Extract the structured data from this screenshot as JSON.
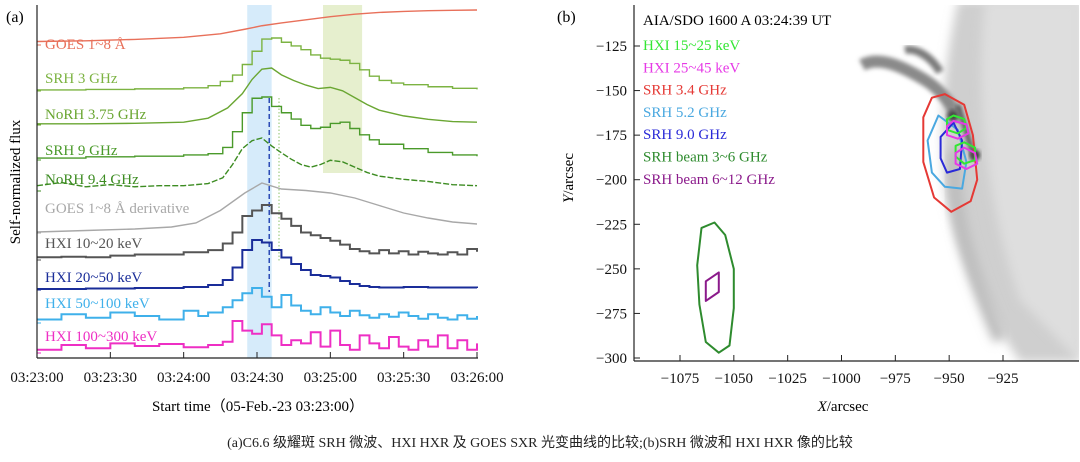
{
  "figure_caption": "(a)C6.6 级耀斑 SRH 微波、HXI HXR 及 GOES SXR 光变曲线的比较;(b)SRH 微波和 HXI HXR 像的比较",
  "chart_data": [
    {
      "panel_label": "(a)",
      "type": "line",
      "title": "",
      "xlabel": "Start time（05-Feb.-23 03:23:00）",
      "ylabel": "Self-normalized flux",
      "x_unit": "seconds since 03:23:00",
      "xlim": [
        0,
        180
      ],
      "x_ticks": [
        0,
        30,
        60,
        90,
        120,
        150,
        180
      ],
      "x_tick_labels": [
        "03:23:00",
        "03:23:30",
        "03:24:00",
        "03:24:30",
        "03:25:00",
        "03:25:30",
        "03:26:00"
      ],
      "grid": false,
      "legend": "inline labels left of each curve",
      "shaded_intervals": [
        {
          "name": "impulsive-phase",
          "x0": 86,
          "x1": 96,
          "color": "#d6ebfa"
        },
        {
          "name": "second-peak",
          "x0": 117,
          "x1": 133,
          "color": "#e6efce"
        }
      ],
      "vertical_markers": [
        {
          "name": "hxr-peak",
          "x": 95,
          "style": "dashed",
          "color": "#1f3fb0"
        },
        {
          "name": "microwave-peak",
          "x": 99,
          "style": "dotted",
          "color": "#8cc26a"
        }
      ],
      "series": [
        {
          "name": "GOES 1~8 Å",
          "color": "#e8705a",
          "step": false,
          "x": [
            0,
            20,
            40,
            60,
            75,
            85,
            92,
            100,
            110,
            120,
            130,
            140,
            150,
            160,
            170,
            180
          ],
          "y": [
            0.1,
            0.12,
            0.16,
            0.22,
            0.32,
            0.45,
            0.55,
            0.63,
            0.72,
            0.81,
            0.88,
            0.93,
            0.96,
            0.98,
            0.99,
            1.0
          ]
        },
        {
          "name": "SRH 3 GHz",
          "color": "#7cb342",
          "step": true,
          "x": [
            0,
            20,
            40,
            60,
            70,
            75,
            80,
            84,
            88,
            92,
            96,
            100,
            104,
            108,
            112,
            116,
            120,
            124,
            128,
            132,
            136,
            140,
            145,
            150,
            160,
            170,
            180
          ],
          "y": [
            0.02,
            0.03,
            0.04,
            0.06,
            0.1,
            0.18,
            0.3,
            0.5,
            0.75,
            0.98,
            1.0,
            0.92,
            0.85,
            0.78,
            0.68,
            0.62,
            0.6,
            0.58,
            0.52,
            0.4,
            0.28,
            0.2,
            0.15,
            0.12,
            0.08,
            0.05,
            0.03
          ]
        },
        {
          "name": "NoRH 3.75 GHz",
          "color": "#6aa632",
          "step": false,
          "x": [
            0,
            20,
            40,
            60,
            70,
            78,
            84,
            88,
            92,
            96,
            100,
            105,
            110,
            115,
            120,
            125,
            130,
            135,
            140,
            150,
            160,
            170,
            180
          ],
          "y": [
            0.02,
            0.02,
            0.03,
            0.05,
            0.12,
            0.3,
            0.55,
            0.8,
            0.98,
            1.0,
            0.88,
            0.78,
            0.7,
            0.64,
            0.66,
            0.6,
            0.48,
            0.36,
            0.26,
            0.16,
            0.1,
            0.06,
            0.05
          ]
        },
        {
          "name": "SRH 9 GHz",
          "color": "#4a9a2a",
          "step": true,
          "x": [
            0,
            20,
            40,
            60,
            70,
            76,
            80,
            84,
            88,
            92,
            96,
            100,
            104,
            108,
            112,
            116,
            120,
            124,
            128,
            132,
            136,
            140,
            150,
            160,
            170,
            180
          ],
          "y": [
            0.03,
            0.05,
            0.06,
            0.08,
            0.1,
            0.2,
            0.45,
            0.75,
            0.98,
            1.0,
            0.85,
            0.75,
            0.65,
            0.55,
            0.5,
            0.52,
            0.58,
            0.6,
            0.5,
            0.4,
            0.32,
            0.25,
            0.18,
            0.12,
            0.08,
            0.06
          ]
        },
        {
          "name": "NoRH 9.4 GHz",
          "color": "#3d8c22",
          "step": false,
          "dashed": true,
          "x": [
            0,
            10,
            20,
            30,
            40,
            50,
            60,
            70,
            76,
            80,
            84,
            88,
            92,
            96,
            100,
            104,
            108,
            112,
            116,
            120,
            125,
            130,
            135,
            140,
            150,
            160,
            170,
            180
          ],
          "y": [
            0.1,
            0.16,
            0.08,
            0.12,
            0.08,
            0.1,
            0.1,
            0.14,
            0.25,
            0.5,
            0.8,
            0.95,
            1.0,
            0.85,
            0.72,
            0.6,
            0.5,
            0.45,
            0.5,
            0.58,
            0.55,
            0.45,
            0.35,
            0.28,
            0.22,
            0.18,
            0.12,
            0.1
          ]
        },
        {
          "name": "GOES 1~8 Å derivative",
          "color": "#a8a8a8",
          "step": false,
          "x": [
            0,
            20,
            40,
            55,
            65,
            75,
            85,
            92,
            100,
            110,
            120,
            130,
            140,
            150,
            160,
            170,
            180
          ],
          "y": [
            0.02,
            0.05,
            0.08,
            0.12,
            0.2,
            0.45,
            0.8,
            1.0,
            0.88,
            0.85,
            0.8,
            0.7,
            0.55,
            0.4,
            0.3,
            0.22,
            0.18
          ]
        },
        {
          "name": "HXI 10~20 keV",
          "color": "#555555",
          "step": true,
          "x": [
            0,
            10,
            20,
            30,
            40,
            50,
            60,
            70,
            76,
            80,
            84,
            88,
            92,
            96,
            100,
            104,
            108,
            112,
            116,
            120,
            124,
            128,
            132,
            136,
            140,
            144,
            148,
            152,
            156,
            160,
            164,
            168,
            172,
            176,
            180
          ],
          "y": [
            0.05,
            0.06,
            0.05,
            0.08,
            0.1,
            0.1,
            0.14,
            0.18,
            0.3,
            0.5,
            0.8,
            0.9,
            1.0,
            0.85,
            0.75,
            0.62,
            0.5,
            0.45,
            0.4,
            0.35,
            0.28,
            0.2,
            0.16,
            0.12,
            0.18,
            0.12,
            0.16,
            0.1,
            0.15,
            0.12,
            0.1,
            0.14,
            0.1,
            0.2,
            0.15
          ]
        },
        {
          "name": "HXI 20~50 keV",
          "color": "#1a2d99",
          "step": true,
          "x": [
            0,
            20,
            40,
            60,
            70,
            76,
            80,
            84,
            88,
            92,
            96,
            100,
            104,
            108,
            112,
            116,
            120,
            124,
            128,
            132,
            136,
            140,
            150,
            160,
            170,
            180
          ],
          "y": [
            0.02,
            0.03,
            0.04,
            0.06,
            0.1,
            0.2,
            0.45,
            0.8,
            1.0,
            0.95,
            0.8,
            0.65,
            0.52,
            0.4,
            0.3,
            0.28,
            0.25,
            0.18,
            0.12,
            0.08,
            0.06,
            0.05,
            0.06,
            0.05,
            0.05,
            0.04
          ]
        },
        {
          "name": "HXI 50~100 keV",
          "color": "#3fb0ea",
          "step": true,
          "x": [
            0,
            10,
            20,
            30,
            40,
            50,
            60,
            66,
            70,
            76,
            80,
            84,
            88,
            92,
            96,
            100,
            104,
            108,
            112,
            116,
            120,
            124,
            128,
            132,
            136,
            140,
            144,
            148,
            152,
            156,
            160,
            164,
            168,
            172,
            176,
            180
          ],
          "y": [
            0.1,
            0.25,
            0.15,
            0.3,
            0.2,
            0.1,
            0.35,
            0.2,
            0.3,
            0.45,
            0.65,
            0.85,
            1.0,
            0.75,
            0.45,
            0.8,
            0.5,
            0.35,
            0.25,
            0.45,
            0.3,
            0.2,
            0.35,
            0.22,
            0.15,
            0.25,
            0.18,
            0.3,
            0.2,
            0.12,
            0.25,
            0.15,
            0.1,
            0.22,
            0.12,
            0.2
          ]
        },
        {
          "name": "HXI 100~300 keV",
          "color": "#ee2fc4",
          "step": true,
          "x": [
            0,
            10,
            20,
            30,
            40,
            50,
            60,
            70,
            76,
            80,
            84,
            88,
            92,
            96,
            100,
            104,
            108,
            112,
            116,
            120,
            124,
            128,
            132,
            136,
            140,
            144,
            148,
            152,
            156,
            160,
            164,
            168,
            172,
            176,
            180
          ],
          "y": [
            0.1,
            0.25,
            0.15,
            0.3,
            0.22,
            0.28,
            0.18,
            0.25,
            0.35,
            1.0,
            0.7,
            0.6,
            0.9,
            0.55,
            0.25,
            0.4,
            0.3,
            0.65,
            0.2,
            0.7,
            0.25,
            0.1,
            0.55,
            0.3,
            0.15,
            0.5,
            0.2,
            0.1,
            0.4,
            0.2,
            0.55,
            0.15,
            0.4,
            0.1,
            0.3
          ]
        }
      ]
    },
    {
      "panel_label": "(b)",
      "type": "scatter",
      "title": "AIA/SDO 1600 A 03:24:39 UT",
      "xlabel": "X/arcsec",
      "ylabel": "Y/arcsec",
      "xlim": [
        -1097,
        -891
      ],
      "ylim": [
        -300,
        -102
      ],
      "x_ticks": [
        -1075,
        -1050,
        -1025,
        -1000,
        -975,
        -950,
        -925
      ],
      "x_tick_labels": [
        "−1075",
        "−1050",
        "−1025",
        "−1000",
        "−975",
        "−950",
        "−925"
      ],
      "y_ticks": [
        -125,
        -150,
        -175,
        -200,
        -225,
        -250,
        -275,
        -300
      ],
      "y_tick_labels": [
        "−125",
        "−150",
        "−175",
        "−200",
        "−225",
        "−250",
        "−275",
        "−300"
      ],
      "grid": false,
      "legend": "top-left",
      "background": "grayscale AIA 1600 Å image, solar limb on right",
      "legend_entries": [
        {
          "label": "HXI 15~25 keV",
          "color": "#33e633"
        },
        {
          "label": "HXI 25~45 keV",
          "color": "#e63ae6"
        },
        {
          "label": "SRH 3.4 GHz",
          "color": "#e53935"
        },
        {
          "label": "SRH 5.2 GHz",
          "color": "#4aa8e0"
        },
        {
          "label": "SRH 9.0 GHz",
          "color": "#2a2ad8"
        },
        {
          "label": "SRH beam 3~6 GHz",
          "color": "#2e8b2e"
        },
        {
          "label": "SRH beam 6~12 GHz",
          "color": "#8b1a8b"
        }
      ],
      "contours": [
        {
          "name": "SRH 3.4 GHz",
          "color": "#e53935",
          "points": [
            [
              -952,
              -152
            ],
            [
              -943,
              -158
            ],
            [
              -939,
              -175
            ],
            [
              -937,
              -200
            ],
            [
              -940,
              -212
            ],
            [
              -949,
              -218
            ],
            [
              -957,
              -210
            ],
            [
              -962,
              -190
            ],
            [
              -962,
              -165
            ],
            [
              -958,
              -154
            ]
          ]
        },
        {
          "name": "SRH 5.2 GHz",
          "color": "#4aa8e0",
          "points": [
            [
              -955,
              -164
            ],
            [
              -946,
              -172
            ],
            [
              -942,
              -190
            ],
            [
              -944,
              -205
            ],
            [
              -952,
              -204
            ],
            [
              -958,
              -196
            ],
            [
              -960,
              -178
            ]
          ]
        },
        {
          "name": "SRH 9.0 GHz",
          "color": "#2a2ad8",
          "points": [
            [
              -948,
              -168
            ],
            [
              -944,
              -178
            ],
            [
              -945,
              -194
            ],
            [
              -951,
              -196
            ],
            [
              -954,
              -188
            ],
            [
              -954,
              -176
            ]
          ]
        },
        {
          "name": "HXI 15~25 keV A",
          "color": "#33e633",
          "points": [
            [
              -948,
              -164
            ],
            [
              -943,
              -166
            ],
            [
              -942,
              -171
            ],
            [
              -946,
              -174
            ],
            [
              -951,
              -172
            ],
            [
              -951,
              -166
            ]
          ]
        },
        {
          "name": "HXI 15~25 keV B",
          "color": "#33e633",
          "points": [
            [
              -943,
              -179
            ],
            [
              -938,
              -182
            ],
            [
              -938,
              -189
            ],
            [
              -943,
              -191
            ],
            [
              -947,
              -187
            ],
            [
              -947,
              -181
            ]
          ]
        },
        {
          "name": "HXI 25~45 keV A",
          "color": "#e63ae6",
          "points": [
            [
              -948,
              -167
            ],
            [
              -942,
              -169
            ],
            [
              -941,
              -174
            ],
            [
              -946,
              -177
            ],
            [
              -951,
              -175
            ],
            [
              -951,
              -170
            ]
          ]
        },
        {
          "name": "HXI 25~45 keV B",
          "color": "#e63ae6",
          "points": [
            [
              -943,
              -182
            ],
            [
              -938,
              -185
            ],
            [
              -937,
              -191
            ],
            [
              -942,
              -194
            ],
            [
              -947,
              -191
            ],
            [
              -947,
              -185
            ]
          ]
        },
        {
          "name": "SRH beam 3~6 GHz",
          "color": "#2e8b2e",
          "points": [
            [
              -1059,
              -224
            ],
            [
              -1054,
              -231
            ],
            [
              -1050,
              -250
            ],
            [
              -1050,
              -272
            ],
            [
              -1052,
              -293
            ],
            [
              -1057,
              -297
            ],
            [
              -1063,
              -291
            ],
            [
              -1066,
              -270
            ],
            [
              -1067,
              -248
            ],
            [
              -1065,
              -227
            ]
          ]
        },
        {
          "name": "SRH beam 6~12 GHz",
          "color": "#8b1a8b",
          "points": [
            [
              -1057,
              -252
            ],
            [
              -1057,
              -263
            ],
            [
              -1063,
              -268
            ],
            [
              -1063,
              -257
            ]
          ]
        }
      ]
    }
  ]
}
